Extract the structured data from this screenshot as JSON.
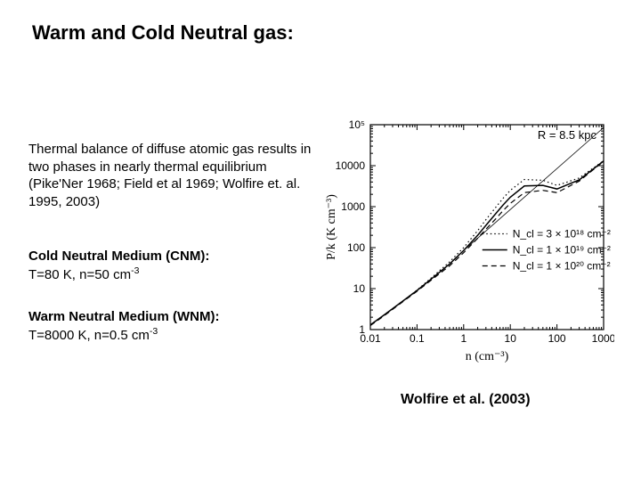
{
  "title": "Warm and Cold Neutral gas:",
  "paragraph": "Thermal balance of diffuse atomic gas results in two phases in nearly thermal equilibrium (Pike'Ner 1968; Field et al 1969; Wolfire et. al. 1995, 2003)",
  "cnm": {
    "head": "Cold Neutral Medium (CNM):",
    "line": "T=80 K, n=50 cm",
    "exp": "-3"
  },
  "wnm": {
    "head": "Warm Neutral Medium (WNM):",
    "line": "T=8000 K, n=0.5 cm",
    "exp": "-3"
  },
  "caption": "Wolfire et al. (2003)",
  "chart": {
    "type": "line",
    "background_color": "#ffffff",
    "xlabel": "n (cm⁻³)",
    "ylabel": "P/k (K cm⁻³)",
    "xscale": "log",
    "yscale": "log",
    "xlim": [
      0.01,
      1000
    ],
    "ylim": [
      1,
      100000
    ],
    "xticks": {
      "positions": [
        0.01,
        0.1,
        1,
        10,
        100,
        1000
      ],
      "labels": [
        "0.01",
        "0.1",
        "1",
        "10",
        "100",
        "1000"
      ]
    },
    "yticks": {
      "positions": [
        1,
        10,
        100,
        1000,
        10000,
        100000
      ],
      "labels": [
        "1",
        "10",
        "100",
        "1000",
        "10000",
        "10⁵"
      ]
    },
    "top_right_label": "R = 8.5 kpc",
    "legend": {
      "entries": [
        {
          "style": "dot",
          "text": "N_cl = 3 × 10¹⁸ cm⁻²"
        },
        {
          "style": "solid",
          "text": "N_cl = 1 × 10¹⁹ cm⁻²"
        },
        {
          "style": "dash",
          "text": "N_cl = 1 × 10²⁰ cm⁻²"
        }
      ],
      "fontsize": 12
    },
    "series": [
      {
        "style": "solid",
        "x": [
          0.01,
          0.02,
          0.05,
          0.1,
          0.2,
          0.5,
          1,
          2,
          3,
          5,
          7,
          10,
          20,
          50,
          100,
          300,
          1000
        ],
        "y": [
          1.3,
          2.3,
          5.0,
          9.0,
          17,
          40,
          85,
          200,
          350,
          700,
          1100,
          1700,
          3200,
          3300,
          2700,
          4500,
          13000
        ]
      },
      {
        "style": "dot",
        "x": [
          0.01,
          0.02,
          0.05,
          0.1,
          0.2,
          0.5,
          1,
          2,
          3,
          5,
          7,
          10,
          20,
          50,
          100,
          300,
          1000
        ],
        "y": [
          1.3,
          2.3,
          5.0,
          9.2,
          18,
          45,
          100,
          260,
          480,
          1000,
          1600,
          2500,
          4600,
          4400,
          3300,
          5000,
          13200
        ]
      },
      {
        "style": "dash",
        "x": [
          0.01,
          0.02,
          0.05,
          0.1,
          0.2,
          0.5,
          1,
          2,
          3,
          5,
          7,
          10,
          20,
          50,
          100,
          300,
          1000
        ],
        "y": [
          1.25,
          2.2,
          4.8,
          8.6,
          16,
          36,
          75,
          170,
          280,
          520,
          800,
          1200,
          2200,
          2500,
          2200,
          4200,
          12800
        ]
      }
    ],
    "ref_line": {
      "x": [
        1,
        1000
      ],
      "y": [
        85,
        85000
      ]
    },
    "axis_fontsize": 12,
    "label_fontsize": 14,
    "line_width_solid": 1.5,
    "line_width_other": 1.2,
    "frame_color": "#000000",
    "curve_color": "#000000"
  }
}
